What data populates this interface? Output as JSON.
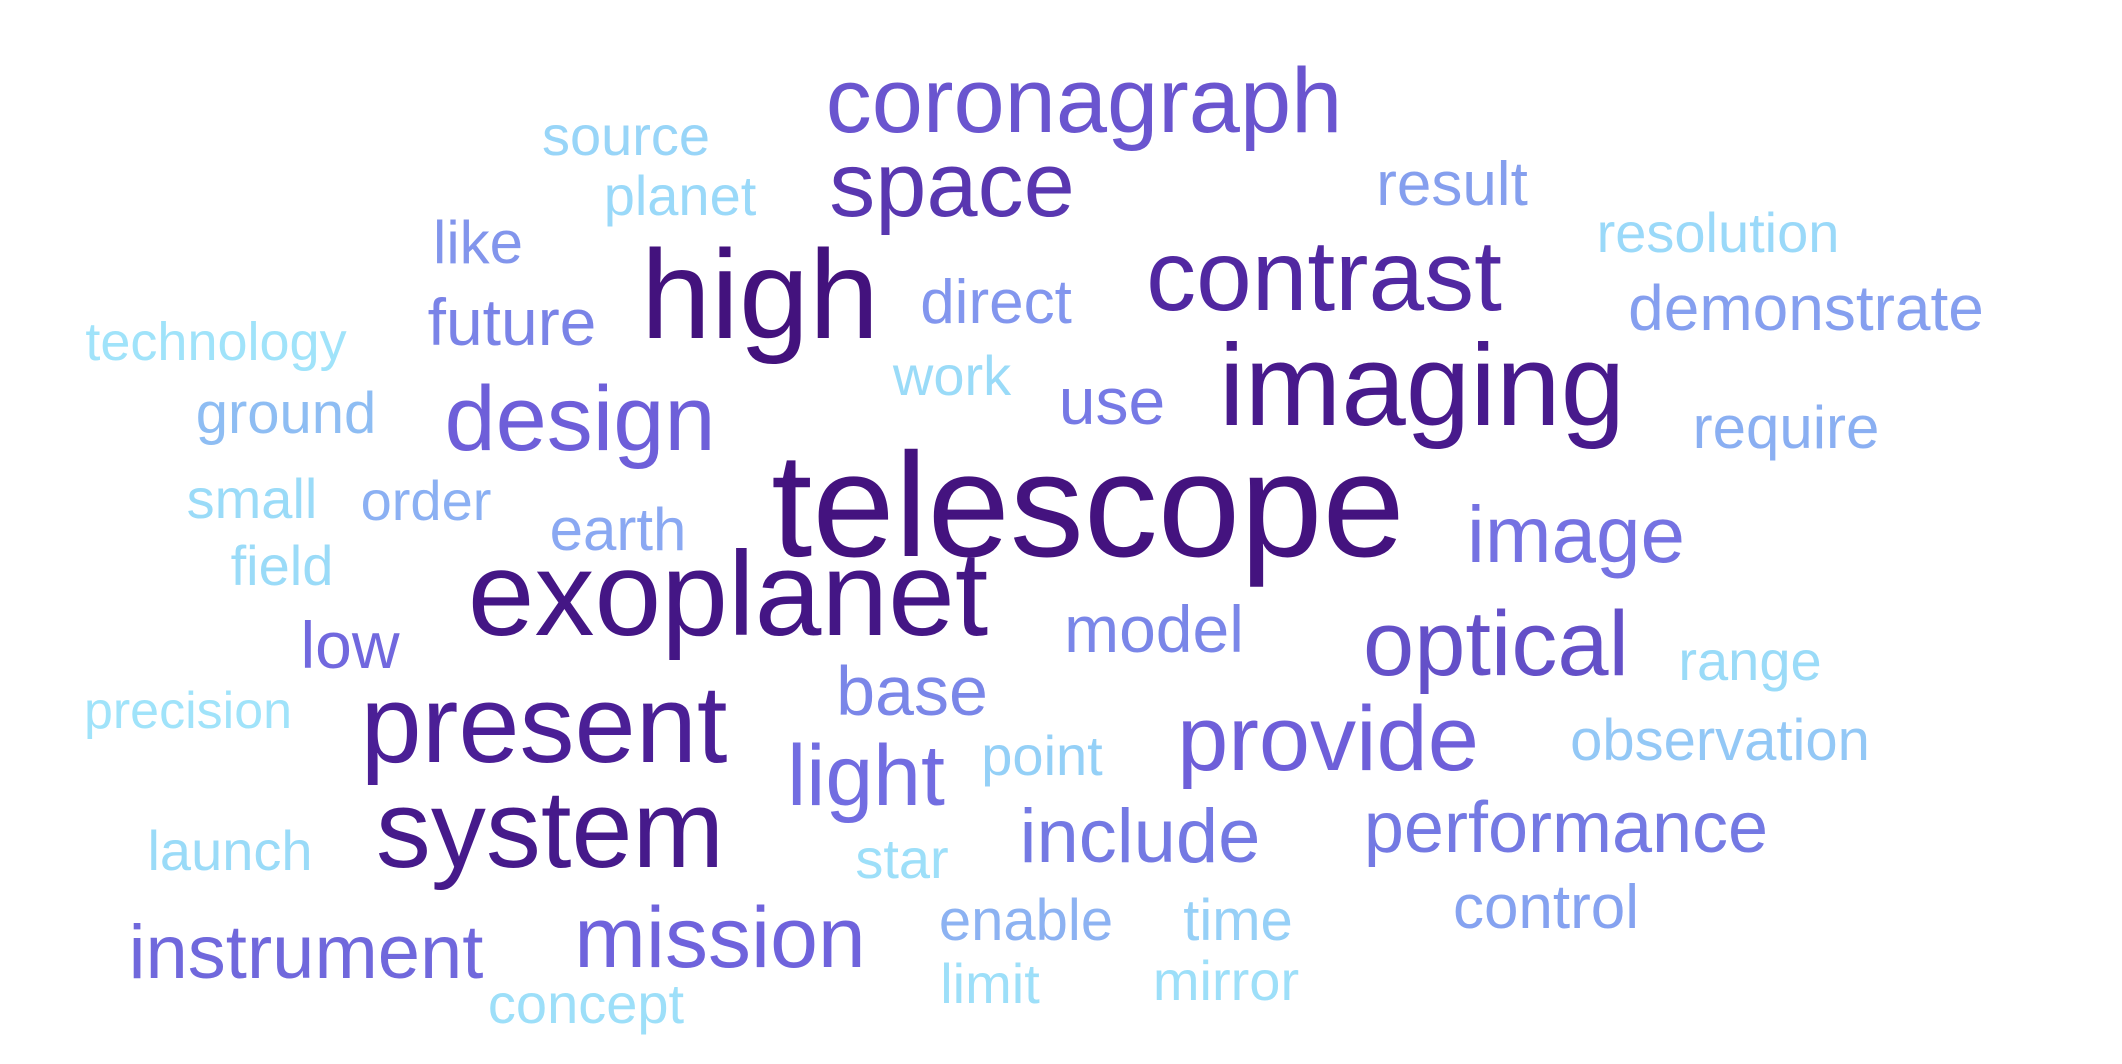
{
  "words": [
    {
      "text": "telescope",
      "color": "#44137f"
    },
    {
      "text": "exoplanet",
      "color": "#441685"
    },
    {
      "text": "high",
      "color": "#43127d"
    },
    {
      "text": "imaging",
      "color": "#481a8c"
    },
    {
      "text": "system",
      "color": "#461a8b"
    },
    {
      "text": "present",
      "color": "#4b1f96"
    },
    {
      "text": "contrast",
      "color": "#5128a1"
    },
    {
      "text": "space",
      "color": "#5937b0"
    },
    {
      "text": "coronagraph",
      "color": "#6a55cf"
    },
    {
      "text": "optical",
      "color": "#6450c8"
    },
    {
      "text": "provide",
      "color": "#6e5fd9"
    },
    {
      "text": "design",
      "color": "#6e5fd9"
    },
    {
      "text": "mission",
      "color": "#6f63dc"
    },
    {
      "text": "instrument",
      "color": "#7068dc"
    },
    {
      "text": "light",
      "color": "#726de1"
    },
    {
      "text": "image",
      "color": "#7572e2"
    },
    {
      "text": "include",
      "color": "#7479e3"
    },
    {
      "text": "performance",
      "color": "#7479e3"
    },
    {
      "text": "model",
      "color": "#7a86e8"
    },
    {
      "text": "base",
      "color": "#7a86e8"
    },
    {
      "text": "use",
      "color": "#7679e5"
    },
    {
      "text": "low",
      "color": "#7168de"
    },
    {
      "text": "future",
      "color": "#7a83e7"
    },
    {
      "text": "direct",
      "color": "#8296ee"
    },
    {
      "text": "demonstrate",
      "color": "#859fef"
    },
    {
      "text": "require",
      "color": "#8aaff2"
    },
    {
      "text": "earth",
      "color": "#8aa8f2"
    },
    {
      "text": "control",
      "color": "#85a2f0"
    },
    {
      "text": "result",
      "color": "#859fee"
    },
    {
      "text": "like",
      "color": "#8295ec"
    },
    {
      "text": "order",
      "color": "#8bb0f3"
    },
    {
      "text": "enable",
      "color": "#8cb2f2"
    },
    {
      "text": "ground",
      "color": "#8ebdf3"
    },
    {
      "text": "observation",
      "color": "#93c8f6"
    },
    {
      "text": "point",
      "color": "#94d0f7"
    },
    {
      "text": "time",
      "color": "#96d0f7"
    },
    {
      "text": "source",
      "color": "#98d5f8"
    },
    {
      "text": "planet",
      "color": "#9ad9f9"
    },
    {
      "text": "resolution",
      "color": "#9ad9f9"
    },
    {
      "text": "small",
      "color": "#9adbf8"
    },
    {
      "text": "field",
      "color": "#9adbf8"
    },
    {
      "text": "range",
      "color": "#9adbf8"
    },
    {
      "text": "launch",
      "color": "#9adbf8"
    },
    {
      "text": "work",
      "color": "#9adbf8"
    },
    {
      "text": "star",
      "color": "#9ddff9"
    },
    {
      "text": "limit",
      "color": "#9ddff9"
    },
    {
      "text": "mirror",
      "color": "#9ddff9"
    },
    {
      "text": "concept",
      "color": "#9ddff9"
    },
    {
      "text": "technology",
      "color": "#a0e3fa"
    },
    {
      "text": "precision",
      "color": "#a0e3fa"
    }
  ]
}
